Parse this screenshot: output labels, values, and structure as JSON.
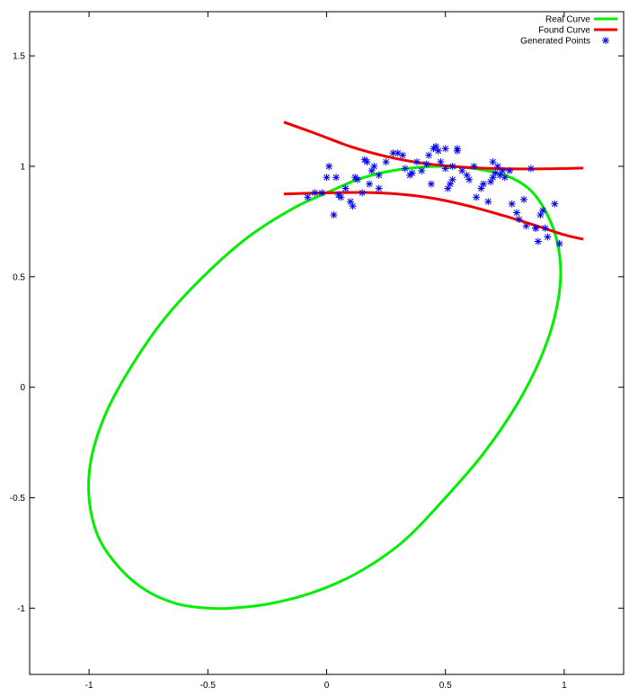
{
  "chart_data": {
    "type": "scatter",
    "xlim": [
      -1.25,
      1.25
    ],
    "ylim": [
      -1.3,
      1.7
    ],
    "x_ticks": [
      -1,
      -0.5,
      0,
      0.5,
      1
    ],
    "x_tick_labels": [
      "-1",
      "-0.5",
      "0",
      "0.5",
      "1"
    ],
    "y_ticks": [
      -1,
      -0.5,
      0,
      0.5,
      1,
      1.5
    ],
    "y_tick_labels": [
      "-1",
      "-0.5",
      "0",
      "0.5",
      "1",
      "1.5"
    ],
    "grid": false,
    "legend_position": "top-right",
    "series": [
      {
        "name": "Real Curve",
        "style": "line",
        "color": "#00ee00",
        "x": [
          0.0,
          0.13,
          0.25,
          0.38,
          0.5,
          0.62,
          0.75,
          0.85,
          0.92,
          0.97,
          0.985,
          0.96,
          0.9,
          0.8,
          0.66,
          0.5,
          0.32,
          0.13,
          -0.06,
          -0.24,
          -0.4,
          -0.5,
          -0.63,
          -0.76,
          -0.87,
          -0.96,
          -1.0,
          -0.99,
          -0.93,
          -0.83,
          -0.69,
          -0.52,
          -0.33,
          -0.14,
          0.0
        ],
        "y": [
          0.88,
          0.94,
          0.975,
          0.995,
          1.0,
          0.99,
          0.96,
          0.9,
          0.8,
          0.66,
          0.5,
          0.32,
          0.13,
          -0.08,
          -0.3,
          -0.5,
          -0.7,
          -0.84,
          -0.93,
          -0.98,
          -1.0,
          -1.0,
          -0.98,
          -0.92,
          -0.82,
          -0.68,
          -0.5,
          -0.32,
          -0.12,
          0.08,
          0.3,
          0.5,
          0.68,
          0.81,
          0.88
        ]
      },
      {
        "name": "Found Curve",
        "style": "line",
        "color": "#ee0000",
        "branches": [
          {
            "x": [
              -0.18,
              -0.05,
              0.1,
              0.25,
              0.4,
              0.55,
              0.7,
              0.85,
              1.0,
              1.08
            ],
            "y": [
              1.2,
              1.15,
              1.09,
              1.045,
              1.015,
              0.998,
              0.99,
              0.988,
              0.99,
              0.992
            ]
          },
          {
            "x": [
              -0.18,
              0.0,
              0.15,
              0.3,
              0.45,
              0.6,
              0.75,
              0.9,
              1.0,
              1.08
            ],
            "y": [
              0.875,
              0.88,
              0.882,
              0.875,
              0.855,
              0.82,
              0.775,
              0.725,
              0.69,
              0.67
            ]
          }
        ]
      },
      {
        "name": "Generated Points",
        "style": "markers",
        "color": "#0000ee",
        "x": [
          -0.08,
          -0.05,
          -0.02,
          0.0,
          0.01,
          0.03,
          0.04,
          0.05,
          0.06,
          0.1,
          0.11,
          0.12,
          0.13,
          0.15,
          0.16,
          0.17,
          0.18,
          0.19,
          0.2,
          0.22,
          0.25,
          0.28,
          0.3,
          0.32,
          0.33,
          0.35,
          0.38,
          0.4,
          0.42,
          0.43,
          0.45,
          0.46,
          0.47,
          0.48,
          0.5,
          0.51,
          0.52,
          0.53,
          0.55,
          0.57,
          0.59,
          0.6,
          0.62,
          0.63,
          0.65,
          0.66,
          0.68,
          0.69,
          0.7,
          0.71,
          0.72,
          0.73,
          0.75,
          0.77,
          0.78,
          0.8,
          0.81,
          0.83,
          0.84,
          0.86,
          0.88,
          0.89,
          0.9,
          0.91,
          0.92,
          0.93,
          0.96,
          0.98,
          0.5,
          0.55,
          0.7,
          0.74,
          0.08,
          0.22,
          0.36,
          0.44,
          0.53,
          0.88
        ],
        "y": [
          0.86,
          0.88,
          0.88,
          0.95,
          1.0,
          0.78,
          0.95,
          0.87,
          0.86,
          0.84,
          0.82,
          0.95,
          0.94,
          0.88,
          1.03,
          1.02,
          0.92,
          0.98,
          1.0,
          0.96,
          1.02,
          1.06,
          1.06,
          1.05,
          0.99,
          0.96,
          1.02,
          0.98,
          1.01,
          1.05,
          1.08,
          1.09,
          1.07,
          1.02,
          1.08,
          0.9,
          0.92,
          1.0,
          1.08,
          0.98,
          0.96,
          0.94,
          1.0,
          0.86,
          0.9,
          0.92,
          0.84,
          0.93,
          0.95,
          0.97,
          1.0,
          0.96,
          0.95,
          0.98,
          0.83,
          0.79,
          0.76,
          0.85,
          0.73,
          0.99,
          0.72,
          0.66,
          0.78,
          0.8,
          0.72,
          0.68,
          0.83,
          0.65,
          0.99,
          1.07,
          1.02,
          0.98,
          0.9,
          0.9,
          0.97,
          0.92,
          0.94,
          0.72
        ]
      }
    ]
  }
}
